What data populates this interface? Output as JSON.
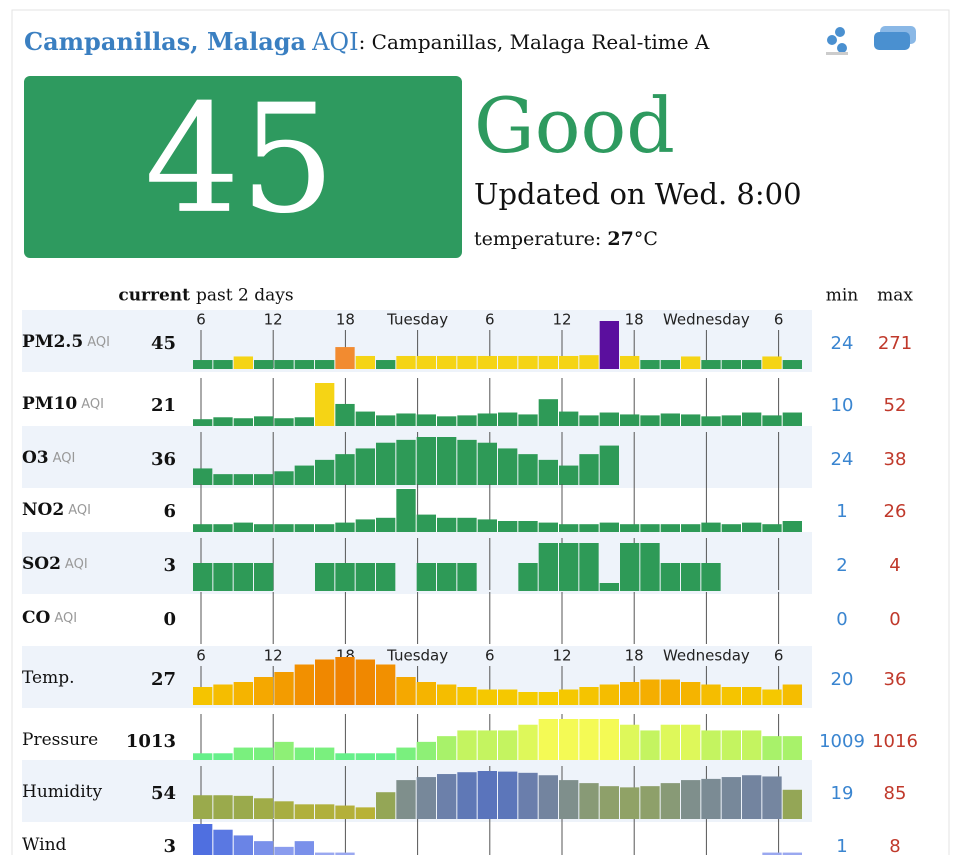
{
  "header": {
    "city": "Campanillas, Malaga",
    "aqi_word": "AQI",
    "subtitle": ": Campanillas, Malaga Real-time A"
  },
  "summary": {
    "aqi": "45",
    "level": "Good",
    "updated": "Updated on Wed. 8:00",
    "temperature_label": "temperature: ",
    "temperature_value": "27",
    "temperature_unit": "°C"
  },
  "table": {
    "current_label": "current",
    "period_label": "past 2 days",
    "min_label": "min",
    "max_label": "max",
    "time_labels": [
      "6",
      "12",
      "18",
      "Tuesday",
      "6",
      "12",
      "18",
      "Wednesday",
      "6"
    ],
    "rows": [
      {
        "name": "PM2.5",
        "unit": "AQI",
        "current": 45,
        "min": 24,
        "max": 271,
        "color": "#2e9a57",
        "values": [
          30,
          30,
          52,
          30,
          30,
          30,
          30,
          110,
          55,
          30,
          55,
          55,
          55,
          55,
          55,
          55,
          55,
          55,
          55,
          60,
          271,
          55,
          30,
          30,
          52,
          30,
          30,
          30,
          52,
          30
        ],
        "colors": [
          "#2e9a57",
          "#2e9a57",
          "#f5d415",
          "#2e9a57",
          "#2e9a57",
          "#2e9a57",
          "#2e9a57",
          "#f28b30",
          "#f5d415",
          "#2e9a57",
          "#f5d415",
          "#f5d415",
          "#f5d415",
          "#f5d415",
          "#f5d415",
          "#f5d415",
          "#f5d415",
          "#f5d415",
          "#f5d415",
          "#f5d415",
          "#5b0f9e",
          "#f5d415",
          "#2e9a57",
          "#2e9a57",
          "#f5d415",
          "#2e9a57",
          "#2e9a57",
          "#2e9a57",
          "#f5d415",
          "#2e9a57"
        ]
      },
      {
        "name": "PM10",
        "unit": "AQI",
        "current": 21,
        "min": 10,
        "max": 52,
        "color": "#2e9a57",
        "values": [
          14,
          16,
          15,
          17,
          15,
          16,
          52,
          30,
          22,
          18,
          20,
          19,
          17,
          18,
          20,
          21,
          19,
          35,
          22,
          18,
          21,
          19,
          18,
          20,
          19,
          17,
          18,
          21,
          18,
          21
        ],
        "colors": [
          "#2e9a57",
          "#2e9a57",
          "#2e9a57",
          "#2e9a57",
          "#2e9a57",
          "#2e9a57",
          "#f5d415",
          "#2e9a57",
          "#2e9a57",
          "#2e9a57",
          "#2e9a57",
          "#2e9a57",
          "#2e9a57",
          "#2e9a57",
          "#2e9a57",
          "#2e9a57",
          "#2e9a57",
          "#2e9a57",
          "#2e9a57",
          "#2e9a57",
          "#2e9a57",
          "#2e9a57",
          "#2e9a57",
          "#2e9a57",
          "#2e9a57",
          "#2e9a57",
          "#2e9a57",
          "#2e9a57",
          "#2e9a57",
          "#2e9a57"
        ]
      },
      {
        "name": "O3",
        "unit": "AQI",
        "current": 36,
        "min": 24,
        "max": 38,
        "color": "#2e9a57",
        "values": [
          27,
          25,
          25,
          25,
          26,
          28,
          30,
          32,
          34,
          36,
          37,
          38,
          38,
          37,
          36,
          34,
          32,
          30,
          28,
          32,
          35,
          null,
          null,
          null,
          null,
          null,
          null,
          null,
          null,
          null
        ]
      },
      {
        "name": "NO2",
        "unit": "AQI",
        "current": 6,
        "min": 1,
        "max": 26,
        "color": "#2e9a57",
        "values": [
          4,
          4,
          5,
          4,
          4,
          4,
          4,
          5,
          7,
          8,
          26,
          10,
          8,
          8,
          7,
          6,
          6,
          5,
          4,
          4,
          5,
          4,
          4,
          4,
          4,
          5,
          4,
          5,
          4,
          6
        ]
      },
      {
        "name": "SO2",
        "unit": "AQI",
        "current": 3,
        "min": 2,
        "max": 4,
        "color": "#2e9a57",
        "values": [
          3,
          3,
          3,
          3,
          null,
          null,
          3,
          3,
          3,
          3,
          null,
          3,
          3,
          3,
          null,
          null,
          3,
          4,
          4,
          4,
          2,
          4,
          4,
          3,
          3,
          3,
          null,
          null,
          null,
          null
        ]
      },
      {
        "name": "CO",
        "unit": "AQI",
        "current": 0,
        "min": 0,
        "max": 0,
        "color": "#2e9a57",
        "values": [
          null,
          null,
          null,
          null,
          null,
          null,
          null,
          null,
          null,
          null,
          null,
          null,
          null,
          null,
          null,
          null,
          null,
          null,
          null,
          null,
          null,
          null,
          null,
          null,
          null,
          null,
          null,
          null,
          null,
          null
        ]
      },
      {
        "name": "Temp.",
        "current": 27,
        "min": 20,
        "max": 36,
        "color": "#f5c400",
        "values": [
          24,
          25,
          26,
          28,
          30,
          33,
          35,
          36,
          35,
          33,
          28,
          26,
          25,
          24,
          23,
          23,
          22,
          22,
          23,
          24,
          25,
          26,
          27,
          27,
          26,
          25,
          24,
          24,
          23,
          25
        ],
        "colors": [
          "#f5c400",
          "#f5bd00",
          "#f5b400",
          "#f5a800",
          "#f39c00",
          "#f29000",
          "#f08800",
          "#ef8200",
          "#f08800",
          "#f29000",
          "#f5a800",
          "#f5b400",
          "#f5bd00",
          "#f5c400",
          "#f5c800",
          "#f5c800",
          "#f5cc00",
          "#f5cc00",
          "#f5c800",
          "#f5c400",
          "#f5bd00",
          "#f5b400",
          "#f5ae00",
          "#f5ae00",
          "#f5b400",
          "#f5bd00",
          "#f5c400",
          "#f5c400",
          "#f5c800",
          "#f5bd00"
        ]
      },
      {
        "name": "Pressure",
        "current": 1013,
        "min": 1009,
        "max": 1016,
        "color": "#7ef07e",
        "values": [
          1010,
          1010,
          1011,
          1011,
          1012,
          1011,
          1011,
          1010,
          1010,
          1010,
          1011,
          1012,
          1013,
          1014,
          1014,
          1014,
          1015,
          1016,
          1016,
          1016,
          1016,
          1015,
          1014,
          1015,
          1015,
          1014,
          1014,
          1014,
          1013,
          1013
        ],
        "colors": [
          "#66f08a",
          "#66f08a",
          "#7af07e",
          "#7af07e",
          "#8ef076",
          "#7af07e",
          "#7af07e",
          "#66f08a",
          "#66f08a",
          "#66f08a",
          "#7af07e",
          "#8ef076",
          "#a8f26a",
          "#c4f460",
          "#c4f460",
          "#c4f460",
          "#def85a",
          "#f4fa55",
          "#f4fa55",
          "#f4fa55",
          "#f4fa55",
          "#def85a",
          "#c4f460",
          "#def85a",
          "#def85a",
          "#c4f460",
          "#c4f460",
          "#c4f460",
          "#a8f26a",
          "#a8f26a"
        ]
      },
      {
        "name": "Humidity",
        "current": 54,
        "min": 19,
        "max": 85,
        "color": "#99a84a",
        "values": [
          45,
          45,
          44,
          40,
          35,
          30,
          30,
          28,
          25,
          50,
          70,
          75,
          80,
          83,
          85,
          84,
          82,
          78,
          70,
          65,
          60,
          58,
          60,
          65,
          70,
          72,
          75,
          78,
          76,
          54
        ],
        "colors": [
          "#9aaa4c",
          "#9aaa4c",
          "#9aaa4c",
          "#a0ac48",
          "#a8ae42",
          "#b0b03c",
          "#b0b03c",
          "#b4b03a",
          "#b8b236",
          "#94a656",
          "#7f8f8c",
          "#77889a",
          "#6c80aa",
          "#5f78b6",
          "#5a74bc",
          "#5c76ba",
          "#6a7eac",
          "#73849f",
          "#7f8f8c",
          "#889a76",
          "#8ea06a",
          "#90a266",
          "#8ea06a",
          "#889a76",
          "#7f8f8c",
          "#7b8b94",
          "#77889a",
          "#73849f",
          "#7586a0",
          "#94a656"
        ]
      },
      {
        "name": "Wind",
        "current": 3,
        "min": 1,
        "max": 8,
        "color": "#5f7fe0",
        "values": [
          8,
          7,
          6,
          5,
          4,
          5,
          3,
          3,
          2,
          2,
          1,
          1,
          1,
          1,
          1,
          2,
          1,
          1,
          1,
          1,
          1,
          1,
          1,
          1,
          1,
          1,
          1,
          2,
          3,
          3
        ],
        "colors": [
          "#4f6fe0",
          "#5a78e2",
          "#6a84e6",
          "#7a90ea",
          "#8a9cee",
          "#7a90ea",
          "#9aa8f0",
          "#9aa8f0",
          "#aab6f4",
          "#aab6f4",
          "#c0caf8",
          "#c0caf8",
          "#c0caf8",
          "#c0caf8",
          "#c0caf8",
          "#aab6f4",
          "#c0caf8",
          "#c0caf8",
          "#c0caf8",
          "#c0caf8",
          "#c0caf8",
          "#c0caf8",
          "#c0caf8",
          "#c0caf8",
          "#c0caf8",
          "#c0caf8",
          "#c0caf8",
          "#aab6f4",
          "#9aa8f0",
          "#9aa8f0"
        ]
      }
    ]
  }
}
